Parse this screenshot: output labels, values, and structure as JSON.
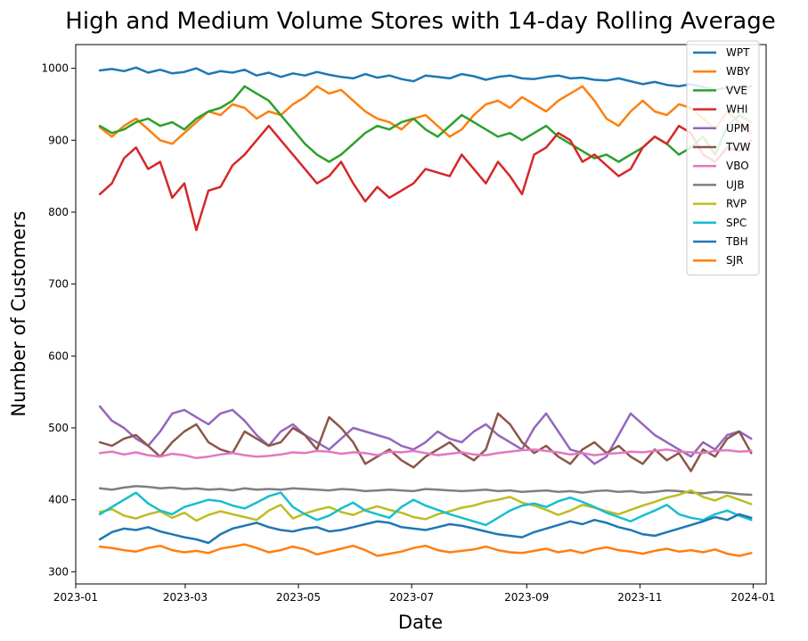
{
  "chart_data": {
    "type": "line",
    "title": "High and Medium Volume Stores with 14-day Rolling Average",
    "xlabel": "Date",
    "ylabel": "Number of Customers",
    "x_start": "2023-01-14",
    "x_end": "2023-12-31",
    "xlim": [
      "2023-01-01",
      "2024-01-08"
    ],
    "ylim": [
      283,
      1033
    ],
    "x_ticks": [
      "2023-01",
      "2023-03",
      "2023-05",
      "2023-07",
      "2023-09",
      "2023-11",
      "2024-01"
    ],
    "y_ticks": [
      300,
      400,
      500,
      600,
      700,
      800,
      900,
      1000
    ],
    "grid": false,
    "legend_position": "top-right",
    "series": [
      {
        "name": "WPT",
        "color": "#1f77b4",
        "values": [
          997,
          999,
          996,
          1001,
          994,
          998,
          993,
          995,
          1000,
          992,
          996,
          994,
          998,
          990,
          994,
          988,
          993,
          990,
          995,
          991,
          988,
          986,
          992,
          987,
          990,
          985,
          982,
          990,
          988,
          986,
          992,
          989,
          984,
          988,
          990,
          986,
          985,
          988,
          990,
          986,
          987,
          984,
          983,
          986,
          982,
          978,
          981,
          977,
          975,
          978,
          974,
          970,
          973,
          972,
          975
        ]
      },
      {
        "name": "WBY",
        "color": "#ff7f0e",
        "values": [
          918,
          905,
          920,
          930,
          915,
          900,
          895,
          910,
          925,
          940,
          935,
          950,
          945,
          930,
          940,
          935,
          950,
          960,
          975,
          965,
          970,
          955,
          940,
          930,
          925,
          915,
          930,
          935,
          920,
          905,
          915,
          935,
          950,
          955,
          945,
          960,
          950,
          940,
          955,
          965,
          975,
          955,
          930,
          920,
          940,
          955,
          940,
          935,
          950,
          945,
          930,
          915,
          940,
          925,
          910
        ]
      },
      {
        "name": "VVE",
        "color": "#2ca02c",
        "values": [
          920,
          910,
          915,
          925,
          930,
          920,
          925,
          915,
          930,
          940,
          945,
          955,
          975,
          965,
          955,
          935,
          915,
          895,
          880,
          870,
          880,
          895,
          910,
          920,
          915,
          925,
          930,
          915,
          905,
          920,
          935,
          925,
          915,
          905,
          910,
          900,
          910,
          920,
          905,
          895,
          885,
          875,
          880,
          870,
          880,
          890,
          905,
          895,
          880,
          890,
          905,
          880,
          920,
          935,
          925
        ]
      },
      {
        "name": "WHI",
        "color": "#d62728",
        "values": [
          825,
          840,
          875,
          890,
          860,
          870,
          820,
          840,
          775,
          830,
          835,
          865,
          880,
          900,
          920,
          900,
          880,
          860,
          840,
          850,
          870,
          840,
          815,
          835,
          820,
          830,
          840,
          860,
          855,
          850,
          880,
          860,
          840,
          870,
          850,
          825,
          880,
          890,
          910,
          900,
          870,
          880,
          865,
          850,
          860,
          890,
          905,
          895,
          920,
          910,
          880,
          870,
          890,
          885,
          900
        ]
      },
      {
        "name": "UPM",
        "color": "#9467bd",
        "values": [
          530,
          510,
          500,
          485,
          475,
          495,
          520,
          525,
          515,
          505,
          520,
          525,
          510,
          490,
          475,
          495,
          505,
          490,
          480,
          470,
          485,
          500,
          495,
          490,
          485,
          475,
          470,
          480,
          495,
          485,
          480,
          495,
          505,
          490,
          480,
          470,
          500,
          520,
          495,
          470,
          465,
          450,
          460,
          490,
          520,
          505,
          490,
          480,
          470,
          460,
          480,
          470,
          490,
          495,
          485
        ]
      },
      {
        "name": "TVW",
        "color": "#8c564b",
        "values": [
          480,
          475,
          485,
          490,
          475,
          460,
          480,
          495,
          505,
          480,
          470,
          465,
          495,
          485,
          475,
          480,
          500,
          490,
          470,
          515,
          500,
          480,
          450,
          460,
          470,
          455,
          445,
          460,
          470,
          480,
          465,
          455,
          470,
          520,
          505,
          480,
          465,
          475,
          460,
          450,
          470,
          480,
          465,
          475,
          460,
          450,
          470,
          455,
          465,
          440,
          470,
          460,
          485,
          495,
          465
        ]
      },
      {
        "name": "VBO",
        "color": "#e377c2",
        "values": [
          465,
          467,
          463,
          466,
          462,
          460,
          464,
          462,
          458,
          460,
          463,
          465,
          462,
          460,
          461,
          463,
          466,
          465,
          468,
          467,
          464,
          466,
          465,
          462,
          467,
          466,
          468,
          465,
          462,
          464,
          466,
          463,
          462,
          465,
          467,
          469,
          470,
          468,
          466,
          463,
          465,
          462,
          464,
          465,
          467,
          466,
          468,
          470,
          467,
          466,
          465,
          468,
          469,
          467,
          468
        ]
      },
      {
        "name": "UJB",
        "color": "#7f7f7f",
        "values": [
          416,
          414,
          417,
          419,
          418,
          416,
          417,
          415,
          416,
          414,
          415,
          413,
          416,
          414,
          415,
          414,
          416,
          415,
          414,
          413,
          415,
          414,
          412,
          413,
          414,
          413,
          412,
          415,
          414,
          413,
          412,
          413,
          414,
          412,
          413,
          411,
          412,
          413,
          411,
          412,
          410,
          412,
          413,
          411,
          412,
          410,
          411,
          413,
          412,
          410,
          409,
          411,
          410,
          408,
          407
        ]
      },
      {
        "name": "RVP",
        "color": "#bcbd22",
        "values": [
          383,
          387,
          378,
          374,
          380,
          384,
          375,
          382,
          371,
          379,
          384,
          380,
          376,
          372,
          385,
          393,
          374,
          381,
          386,
          390,
          383,
          379,
          386,
          391,
          386,
          382,
          376,
          373,
          380,
          384,
          389,
          392,
          397,
          400,
          404,
          396,
          392,
          386,
          379,
          385,
          393,
          389,
          384,
          380,
          386,
          392,
          397,
          403,
          407,
          413,
          404,
          399,
          406,
          400,
          394
        ]
      },
      {
        "name": "SPC",
        "color": "#17becf",
        "values": [
          380,
          390,
          400,
          410,
          395,
          385,
          380,
          390,
          395,
          400,
          398,
          392,
          388,
          396,
          405,
          410,
          390,
          380,
          372,
          378,
          388,
          396,
          385,
          380,
          375,
          390,
          400,
          392,
          386,
          380,
          375,
          370,
          365,
          375,
          385,
          392,
          395,
          390,
          398,
          403,
          397,
          390,
          382,
          376,
          370,
          378,
          385,
          393,
          380,
          375,
          372,
          380,
          385,
          378,
          372
        ]
      },
      {
        "name": "TBH",
        "color": "#1f77b4",
        "values": [
          345,
          355,
          360,
          358,
          362,
          356,
          352,
          348,
          345,
          340,
          352,
          360,
          364,
          368,
          362,
          358,
          356,
          360,
          362,
          356,
          358,
          362,
          366,
          370,
          368,
          362,
          360,
          358,
          362,
          366,
          364,
          360,
          356,
          352,
          350,
          348,
          355,
          360,
          365,
          370,
          366,
          372,
          368,
          362,
          358,
          352,
          350,
          355,
          360,
          365,
          370,
          376,
          372,
          380,
          375
        ]
      },
      {
        "name": "SJR",
        "color": "#ff7f0e",
        "values": [
          335,
          333,
          330,
          328,
          333,
          336,
          330,
          327,
          329,
          326,
          332,
          335,
          338,
          333,
          327,
          330,
          335,
          331,
          324,
          328,
          332,
          336,
          330,
          322,
          325,
          328,
          333,
          336,
          330,
          327,
          329,
          331,
          335,
          330,
          327,
          326,
          329,
          332,
          327,
          330,
          326,
          331,
          334,
          330,
          328,
          325,
          329,
          332,
          328,
          330,
          327,
          331,
          325,
          322,
          326
        ]
      }
    ]
  }
}
